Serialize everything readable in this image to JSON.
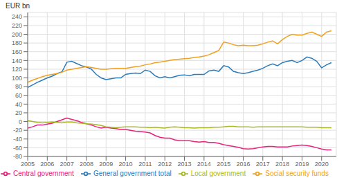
{
  "chart_data": {
    "type": "line",
    "y_label": "EUR bn",
    "xlim": [
      2005,
      2020.75
    ],
    "ylim": [
      -80,
      250
    ],
    "yticks": [
      -80,
      -60,
      -40,
      -20,
      0,
      20,
      40,
      60,
      80,
      100,
      120,
      140,
      160,
      180,
      200,
      220,
      240
    ],
    "xticks": [
      2005,
      2006,
      2007,
      2008,
      2009,
      2010,
      2011,
      2012,
      2013,
      2014,
      2015,
      2016,
      2017,
      2018,
      2019,
      2020
    ],
    "grid": true,
    "legend": "bottom",
    "x": [
      2005.0,
      2005.25,
      2005.5,
      2005.75,
      2006.0,
      2006.25,
      2006.5,
      2006.75,
      2007.0,
      2007.25,
      2007.5,
      2007.75,
      2008.0,
      2008.25,
      2008.5,
      2008.75,
      2009.0,
      2009.25,
      2009.5,
      2009.75,
      2010.0,
      2010.25,
      2010.5,
      2010.75,
      2011.0,
      2011.25,
      2011.5,
      2011.75,
      2012.0,
      2012.25,
      2012.5,
      2012.75,
      2013.0,
      2013.25,
      2013.5,
      2013.75,
      2014.0,
      2014.25,
      2014.5,
      2014.75,
      2015.0,
      2015.25,
      2015.5,
      2015.75,
      2016.0,
      2016.25,
      2016.5,
      2016.75,
      2017.0,
      2017.25,
      2017.5,
      2017.75,
      2018.0,
      2018.25,
      2018.5,
      2018.75,
      2019.0,
      2019.25,
      2019.5,
      2019.75,
      2020.0,
      2020.25,
      2020.5
    ],
    "series": [
      {
        "name": "General government total",
        "color": "#2b7bba",
        "values": [
          78,
          84,
          90,
          95,
          100,
          104,
          110,
          114,
          136,
          138,
          133,
          128,
          125,
          120,
          108,
          100,
          96,
          98,
          100,
          100,
          108,
          110,
          111,
          110,
          118,
          115,
          105,
          100,
          103,
          100,
          103,
          106,
          107,
          105,
          108,
          108,
          108,
          116,
          118,
          115,
          128,
          125,
          115,
          112,
          110,
          112,
          115,
          118,
          122,
          128,
          132,
          128,
          135,
          138,
          140,
          135,
          140,
          148,
          145,
          138,
          123,
          130,
          135
        ]
      },
      {
        "name": "Central government",
        "color": "#e8217a",
        "values": [
          -15,
          -12,
          -8,
          -8,
          -6,
          -4,
          0,
          4,
          8,
          5,
          2,
          -2,
          -5,
          -8,
          -12,
          -15,
          -13,
          -15,
          -16,
          -18,
          -18,
          -20,
          -22,
          -23,
          -24,
          -26,
          -32,
          -36,
          -38,
          -38,
          -42,
          -44,
          -44,
          -44,
          -46,
          -47,
          -46,
          -48,
          -48,
          -50,
          -53,
          -55,
          -57,
          -59,
          -62,
          -63,
          -62,
          -60,
          -58,
          -57,
          -57,
          -58,
          -58,
          -58,
          -56,
          -55,
          -54,
          -55,
          -57,
          -60,
          -63,
          -65,
          -65
        ]
      },
      {
        "name": "Local government",
        "color": "#a8b820",
        "values": [
          2,
          0,
          -2,
          -3,
          -2,
          -1,
          -2,
          -3,
          -1,
          -1,
          -3,
          -4,
          -5,
          -6,
          -7,
          -9,
          -12,
          -13,
          -14,
          -13,
          -12,
          -12,
          -12,
          -13,
          -13,
          -14,
          -13,
          -14,
          -15,
          -13,
          -12,
          -13,
          -14,
          -14,
          -15,
          -14,
          -14,
          -14,
          -13,
          -13,
          -12,
          -11,
          -11,
          -12,
          -12,
          -12,
          -13,
          -12,
          -12,
          -12,
          -12,
          -12,
          -12,
          -12,
          -12,
          -12,
          -12,
          -13,
          -13,
          -13,
          -14,
          -14,
          -14
        ]
      },
      {
        "name": "Social security funds",
        "color": "#f0a020",
        "values": [
          90,
          95,
          99,
          103,
          106,
          108,
          110,
          113,
          118,
          120,
          122,
          124,
          126,
          124,
          122,
          120,
          120,
          121,
          122,
          122,
          122,
          124,
          126,
          127,
          130,
          132,
          135,
          136,
          138,
          140,
          142,
          143,
          144,
          145,
          147,
          148,
          150,
          153,
          158,
          163,
          182,
          180,
          176,
          174,
          175,
          174,
          174,
          175,
          178,
          182,
          185,
          178,
          188,
          195,
          200,
          198,
          198,
          202,
          205,
          200,
          195,
          205,
          208
        ]
      }
    ]
  }
}
